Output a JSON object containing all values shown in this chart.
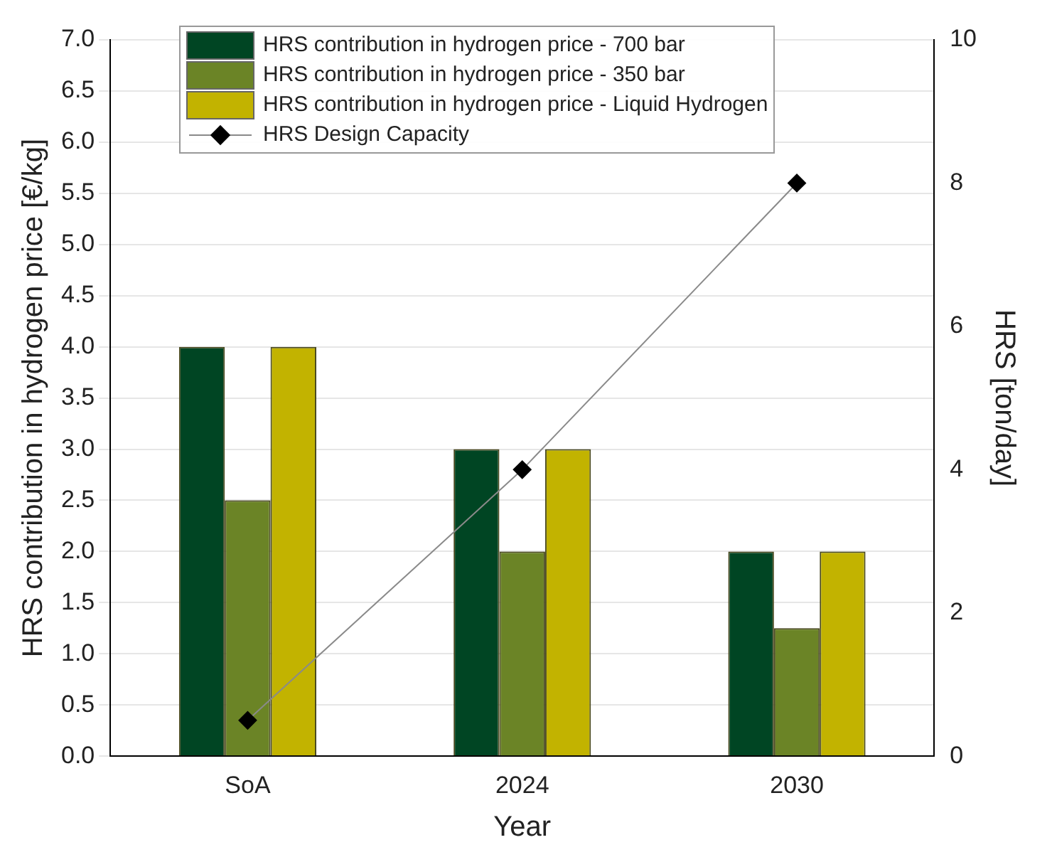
{
  "chart_data": {
    "type": "bar",
    "xlabel": "Year",
    "ylabel": "HRS contribution in hydrogen price [€/kg]",
    "y2label": "HRS [ton/day]",
    "categories": [
      "SoA",
      "2024",
      "2030"
    ],
    "series": [
      {
        "name": "HRS contribution in hydrogen price - 700 bar",
        "color": "#004523",
        "values": [
          4.0,
          3.0,
          2.0
        ]
      },
      {
        "name": "HRS contribution in hydrogen price - 350 bar",
        "color": "#6b8426",
        "values": [
          2.5,
          2.0,
          1.25
        ]
      },
      {
        "name": "HRS contribution in hydrogen price - Liquid Hydrogen",
        "color": "#c2b300",
        "values": [
          4.0,
          3.0,
          2.0
        ]
      },
      {
        "name": "HRS Design Capacity",
        "type": "line",
        "axis": "y2",
        "color": "#000000",
        "marker": "diamond",
        "values": [
          0.5,
          4,
          8
        ]
      }
    ],
    "ylim": [
      0,
      7
    ],
    "yticks": [
      {
        "value": 0,
        "label": "0.0"
      },
      0.5,
      {
        "value": 1,
        "label": "1.0"
      },
      1.5,
      {
        "value": 2,
        "label": "2.0"
      },
      2.5,
      {
        "value": 3,
        "label": "3.0"
      },
      3.5,
      {
        "value": 4,
        "label": "4.0"
      },
      4.5,
      {
        "value": 5,
        "label": "5.0"
      },
      5.5,
      {
        "value": 6,
        "label": "6.0"
      },
      6.5,
      {
        "value": 7,
        "label": "7.0"
      }
    ],
    "y2lim": [
      0,
      10
    ],
    "y2ticks": [
      0,
      2,
      4,
      6,
      8,
      10
    ],
    "grid": "y",
    "legend": "top left"
  }
}
